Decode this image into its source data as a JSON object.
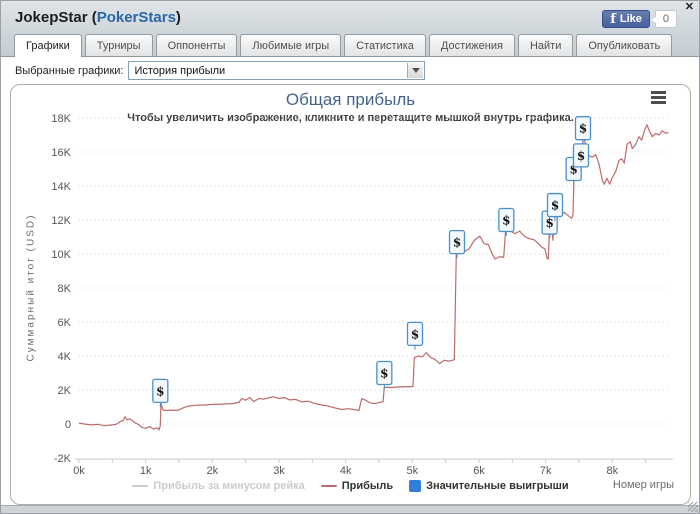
{
  "window": {
    "close_glyph": "✕"
  },
  "header": {
    "title_prefix": "JokepStar (",
    "site": "PokerStars",
    "title_suffix": ")",
    "fb_like": {
      "logo": "f",
      "label": "Like",
      "count": "0"
    }
  },
  "tabs": {
    "items": [
      {
        "label": "Графики",
        "active": true
      },
      {
        "label": "Турниры",
        "active": false
      },
      {
        "label": "Оппоненты",
        "active": false
      },
      {
        "label": "Любимые игры",
        "active": false
      },
      {
        "label": "Статистика",
        "active": false
      },
      {
        "label": "Достижения",
        "active": false
      },
      {
        "label": "Найти",
        "active": false
      },
      {
        "label": "Опубликовать",
        "active": false
      }
    ]
  },
  "filter": {
    "label": "Выбранные графики:",
    "value": "История прибыли"
  },
  "chart_data": {
    "type": "line",
    "title": "Общая прибыль",
    "subtitle": "Чтобы увеличить изображение, кликните и перетащите мышкой внутрь графика.",
    "xlabel": "Номер игры",
    "ylabel": "Суммарный итог (USD)",
    "units": "x in thousands of games, y in thousands USD",
    "x_max_k": 8.85,
    "ylim_k": [
      -2,
      18
    ],
    "grid": "dotted horizontal",
    "legend_position": "bottom-center",
    "x_ticks": [
      {
        "v": 0,
        "label": "0k"
      },
      {
        "v": 1,
        "label": "1k"
      },
      {
        "v": 2,
        "label": "2k"
      },
      {
        "v": 3,
        "label": "3k"
      },
      {
        "v": 4,
        "label": "4k"
      },
      {
        "v": 5,
        "label": "5k"
      },
      {
        "v": 6,
        "label": "6k"
      },
      {
        "v": 7,
        "label": "7k"
      },
      {
        "v": 8,
        "label": "8k"
      }
    ],
    "y_ticks": [
      {
        "v": 18,
        "label": "18K"
      },
      {
        "v": 16,
        "label": "16K"
      },
      {
        "v": 14,
        "label": "14K"
      },
      {
        "v": 12,
        "label": "12K"
      },
      {
        "v": 10,
        "label": "10K"
      },
      {
        "v": 8,
        "label": "8K"
      },
      {
        "v": 6,
        "label": "6K"
      },
      {
        "v": 4,
        "label": "4K"
      },
      {
        "v": 2,
        "label": "2K"
      },
      {
        "v": 0,
        "label": "0"
      },
      {
        "v": -2,
        "label": "-2K"
      }
    ],
    "series": [
      {
        "name": "Прибыль за минусом рейка",
        "color": "#cccccc",
        "enabled": false,
        "points": []
      },
      {
        "name": "Прибыль",
        "color": "#bd6b6b",
        "enabled": true,
        "points": [
          [
            0.0,
            0.05
          ],
          [
            0.08,
            0.0
          ],
          [
            0.18,
            -0.05
          ],
          [
            0.28,
            -0.02
          ],
          [
            0.38,
            -0.1
          ],
          [
            0.48,
            -0.06
          ],
          [
            0.56,
            -0.02
          ],
          [
            0.62,
            0.15
          ],
          [
            0.66,
            0.2
          ],
          [
            0.69,
            0.42
          ],
          [
            0.72,
            0.25
          ],
          [
            0.76,
            0.3
          ],
          [
            0.8,
            0.2
          ],
          [
            0.85,
            0.05
          ],
          [
            0.9,
            -0.05
          ],
          [
            0.94,
            -0.2
          ],
          [
            1.0,
            -0.25
          ],
          [
            1.06,
            -0.15
          ],
          [
            1.12,
            -0.3
          ],
          [
            1.17,
            -0.22
          ],
          [
            1.2,
            -0.35
          ],
          [
            1.22,
            -0.1
          ],
          [
            1.23,
            1.2
          ],
          [
            1.26,
            0.82
          ],
          [
            1.32,
            0.8
          ],
          [
            1.4,
            0.82
          ],
          [
            1.48,
            0.8
          ],
          [
            1.56,
            0.95
          ],
          [
            1.64,
            1.05
          ],
          [
            1.74,
            1.1
          ],
          [
            1.88,
            1.12
          ],
          [
            2.02,
            1.15
          ],
          [
            2.16,
            1.17
          ],
          [
            2.3,
            1.2
          ],
          [
            2.4,
            1.27
          ],
          [
            2.44,
            1.5
          ],
          [
            2.5,
            1.4
          ],
          [
            2.56,
            1.55
          ],
          [
            2.62,
            1.32
          ],
          [
            2.7,
            1.5
          ],
          [
            2.77,
            1.46
          ],
          [
            2.85,
            1.55
          ],
          [
            2.92,
            1.6
          ],
          [
            3.0,
            1.5
          ],
          [
            3.08,
            1.55
          ],
          [
            3.16,
            1.42
          ],
          [
            3.25,
            1.45
          ],
          [
            3.34,
            1.3
          ],
          [
            3.44,
            1.34
          ],
          [
            3.54,
            1.2
          ],
          [
            3.64,
            1.12
          ],
          [
            3.74,
            1.05
          ],
          [
            3.84,
            0.95
          ],
          [
            3.94,
            0.85
          ],
          [
            4.04,
            0.9
          ],
          [
            4.12,
            0.85
          ],
          [
            4.2,
            0.8
          ],
          [
            4.24,
            1.5
          ],
          [
            4.3,
            1.4
          ],
          [
            4.36,
            1.25
          ],
          [
            4.44,
            1.2
          ],
          [
            4.52,
            1.28
          ],
          [
            4.56,
            1.3
          ],
          [
            4.58,
            2.15
          ],
          [
            4.7,
            2.15
          ],
          [
            4.82,
            2.18
          ],
          [
            4.94,
            2.2
          ],
          [
            5.01,
            2.2
          ],
          [
            5.03,
            3.9
          ],
          [
            5.09,
            4.0
          ],
          [
            5.15,
            3.95
          ],
          [
            5.21,
            4.2
          ],
          [
            5.28,
            3.9
          ],
          [
            5.34,
            3.8
          ],
          [
            5.41,
            3.55
          ],
          [
            5.48,
            3.75
          ],
          [
            5.56,
            3.7
          ],
          [
            5.63,
            3.78
          ],
          [
            5.66,
            10.0
          ],
          [
            5.76,
            10.1
          ],
          [
            5.85,
            10.3
          ],
          [
            5.93,
            10.8
          ],
          [
            6.01,
            11.05
          ],
          [
            6.08,
            10.6
          ],
          [
            6.14,
            10.55
          ],
          [
            6.2,
            10.0
          ],
          [
            6.24,
            9.7
          ],
          [
            6.31,
            9.85
          ],
          [
            6.37,
            9.8
          ],
          [
            6.4,
            11.5
          ],
          [
            6.47,
            11.35
          ],
          [
            6.54,
            11.2
          ],
          [
            6.61,
            11.35
          ],
          [
            6.68,
            11.05
          ],
          [
            6.75,
            10.9
          ],
          [
            6.82,
            10.85
          ],
          [
            6.88,
            10.65
          ],
          [
            6.94,
            10.4
          ],
          [
            6.99,
            10.3
          ],
          [
            7.02,
            9.75
          ],
          [
            7.04,
            9.7
          ],
          [
            7.06,
            11.85
          ],
          [
            7.09,
            11.4
          ],
          [
            7.11,
            10.8
          ],
          [
            7.13,
            12.9
          ],
          [
            7.17,
            12.5
          ],
          [
            7.22,
            12.3
          ],
          [
            7.28,
            12.45
          ],
          [
            7.34,
            12.25
          ],
          [
            7.39,
            12.1
          ],
          [
            7.41,
            12.3
          ],
          [
            7.43,
            15.1
          ],
          [
            7.48,
            15.05
          ],
          [
            7.52,
            15.25
          ],
          [
            7.54,
            15.9
          ],
          [
            7.57,
            17.3
          ],
          [
            7.6,
            16.1
          ],
          [
            7.64,
            15.8
          ],
          [
            7.7,
            15.7
          ],
          [
            7.75,
            15.85
          ],
          [
            7.8,
            15.3
          ],
          [
            7.85,
            14.35
          ],
          [
            7.88,
            14.1
          ],
          [
            7.92,
            14.45
          ],
          [
            7.96,
            14.1
          ],
          [
            8.0,
            14.5
          ],
          [
            8.05,
            14.85
          ],
          [
            8.1,
            15.5
          ],
          [
            8.14,
            15.6
          ],
          [
            8.18,
            15.35
          ],
          [
            8.22,
            16.45
          ],
          [
            8.27,
            16.6
          ],
          [
            8.3,
            16.2
          ],
          [
            8.35,
            16.45
          ],
          [
            8.4,
            16.9
          ],
          [
            8.44,
            16.7
          ],
          [
            8.49,
            17.35
          ],
          [
            8.52,
            17.6
          ],
          [
            8.56,
            17.2
          ],
          [
            8.6,
            16.9
          ],
          [
            8.65,
            17.1
          ],
          [
            8.7,
            17.0
          ],
          [
            8.75,
            17.25
          ],
          [
            8.8,
            17.1
          ],
          [
            8.84,
            17.15
          ]
        ]
      }
    ],
    "significant_wins": {
      "name": "Значительные выигрыши",
      "color": "#2f7ed8",
      "marker_glyph": "$",
      "markers": [
        [
          1.22,
          1.95
        ],
        [
          4.58,
          3.0
        ],
        [
          5.04,
          5.3
        ],
        [
          5.67,
          10.7
        ],
        [
          6.41,
          12.0
        ],
        [
          7.06,
          11.85
        ],
        [
          7.14,
          12.88
        ],
        [
          7.42,
          15.0
        ],
        [
          7.53,
          15.8
        ],
        [
          7.56,
          17.4
        ]
      ]
    }
  }
}
